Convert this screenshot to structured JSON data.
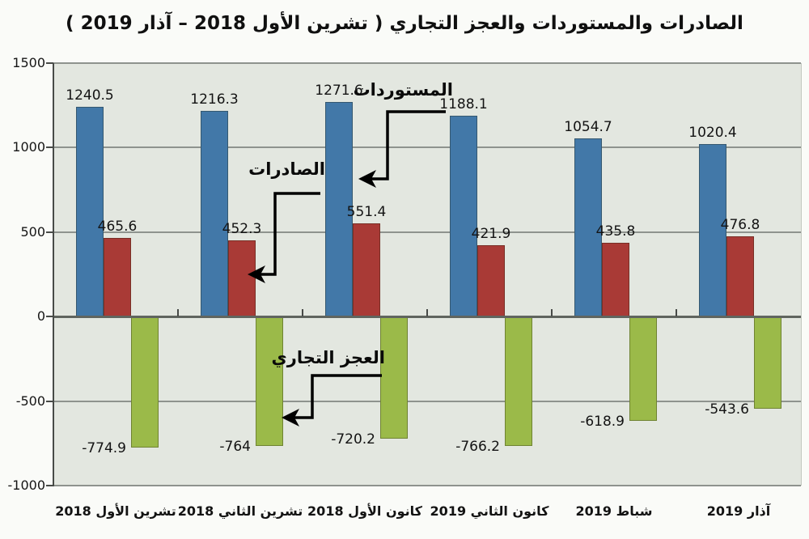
{
  "title": "الصادرات والمستوردات والعجز التجاري ( تشرين الأول 2018 – آذار 2019 )",
  "chart_data": {
    "type": "bar",
    "title": "الصادرات والمستوردات والعجز التجاري ( تشرين الأول 2018 – آذار 2019 )",
    "categories": [
      "تشرين الأول 2018",
      "تشرين الثاني 2018",
      "كانون الأول 2018",
      "كانون الثاني 2019",
      "شباط 2019",
      "آذار 2019"
    ],
    "series": [
      {
        "name": "المستوردات",
        "color": "#4278a8",
        "values": [
          1240.5,
          1216.3,
          1271.6,
          1188.1,
          1054.7,
          1020.4
        ],
        "labels": [
          "1240.5",
          "1216.3",
          "1271.6",
          "1188.1",
          "1054.7",
          "1020.4"
        ]
      },
      {
        "name": "الصادرات",
        "color": "#a93a36",
        "values": [
          465.6,
          452.3,
          551.4,
          421.9,
          435.8,
          476.8
        ],
        "labels": [
          "465.6",
          "452.3",
          "551.4",
          "421.9",
          "435.8",
          "476.8"
        ]
      },
      {
        "name": "العجز التجاري",
        "color": "#9bba49",
        "values": [
          -774.9,
          -764,
          -720.2,
          -766.2,
          -618.9,
          -543.6
        ],
        "labels": [
          "-774.9",
          "-764",
          "-720.2",
          "-766.2",
          "-618.9",
          "-543.6"
        ]
      }
    ],
    "ylim": [
      -1000,
      1500
    ],
    "yticks": [
      1500,
      1000,
      500,
      0,
      -500,
      -1000
    ],
    "grid": true,
    "legend_position": "arrow-callout-annotations"
  },
  "annotations": [
    {
      "label": "المستوردات"
    },
    {
      "label": "الصادرات"
    },
    {
      "label": "العجز التجاري"
    }
  ],
  "colors": {
    "imports_bar": "#4278a8",
    "exports_bar": "#a93a36",
    "deficit_bar": "#9bba49",
    "plot_background": "#e3e7e0",
    "gridline": "#8e938e",
    "zero_axis": "#60655f",
    "text": "#131313"
  }
}
